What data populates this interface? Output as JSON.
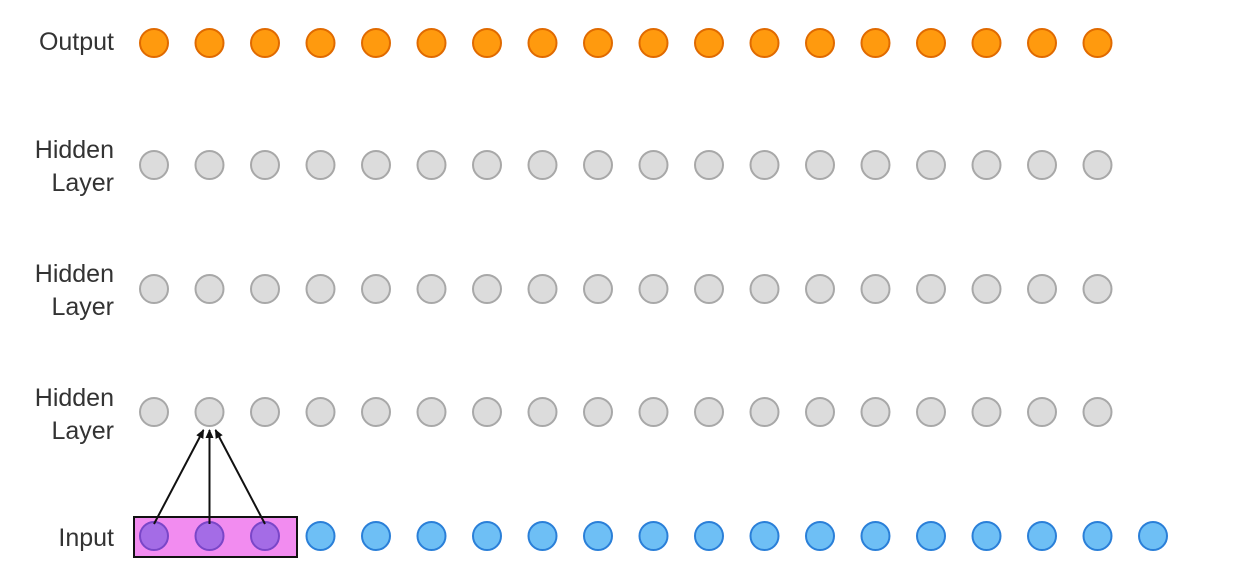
{
  "layers": [
    {
      "label_lines": [
        "Output"
      ],
      "node_count": 18,
      "fill": "#FF9A0E",
      "stroke": "#E06A00"
    },
    {
      "label_lines": [
        "Hidden",
        "Layer"
      ],
      "node_count": 18,
      "fill": "#DCDCDC",
      "stroke": "#A8A8A8"
    },
    {
      "label_lines": [
        "Hidden",
        "Layer"
      ],
      "node_count": 18,
      "fill": "#DCDCDC",
      "stroke": "#A8A8A8"
    },
    {
      "label_lines": [
        "Hidden",
        "Layer"
      ],
      "node_count": 18,
      "fill": "#DCDCDC",
      "stroke": "#A8A8A8"
    },
    {
      "label_lines": [
        "Input"
      ],
      "node_count": 19,
      "fill": "#6EBFF5",
      "stroke": "#2A7FD8"
    }
  ],
  "receptive_field": {
    "input_nodes": [
      0,
      1,
      2
    ],
    "target_layer": 3,
    "target_node": 1,
    "box_fill": "#F28CF0",
    "box_stroke": "#111111",
    "highlight_fill": "#A46CE6",
    "highlight_stroke": "#7A46C8",
    "arrow_color": "#111111"
  }
}
